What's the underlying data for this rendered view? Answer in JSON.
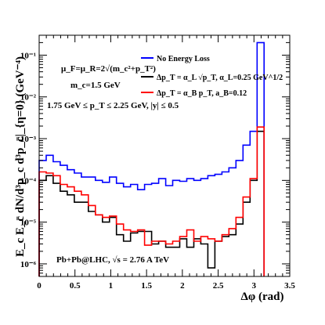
{
  "chart_data": {
    "type": "line",
    "xlabel": "Δφ (rad)",
    "ylabel": "E_c E_c̄ dN/d³p_c d³p_c̄|_{η=0} (GeV⁻⁴)",
    "xlim": [
      0,
      3.5
    ],
    "ylim": [
      5e-07,
      0.3
    ],
    "y_scale": "log",
    "x_ticks": [
      "0",
      "0.5",
      "1",
      "1.5",
      "2",
      "2.5",
      "3",
      "3.5"
    ],
    "y_ticks": [
      "10⁻⁶",
      "10⁻⁵",
      "10⁻⁴",
      "10⁻³",
      "10⁻²",
      "10⁻¹"
    ],
    "grid": false,
    "legend_position": "top-right",
    "annotations": {
      "scale": "μ_F=μ_R=2√(m_c²+p_T²)",
      "mass": "m_c=1.5 GeV",
      "cuts": "1.75 GeV ≤ p_T ≤ 2.25 GeV, |y| ≤ 0.5",
      "system": "Pb+Pb@LHC, √s = 2.76 A TeV"
    },
    "bin_edges": [
      0,
      0.0982,
      0.1963,
      0.2945,
      0.3927,
      0.4909,
      0.589,
      0.6872,
      0.7854,
      0.8836,
      0.9817,
      1.0799,
      1.1781,
      1.2763,
      1.3744,
      1.4726,
      1.5708,
      1.669,
      1.7671,
      1.8653,
      1.9635,
      2.0617,
      2.1598,
      2.258,
      2.3562,
      2.4544,
      2.5525,
      2.6507,
      2.7489,
      2.8471,
      2.9452,
      3.0434,
      3.1416
    ],
    "series": [
      {
        "name": "No Energy Loss",
        "color": "#0000ff",
        "values": [
          0.0003,
          0.0004,
          0.00028,
          0.00023,
          0.00018,
          0.00015,
          0.00012,
          0.00012,
          0.0001,
          9e-05,
          0.00012,
          8.5e-05,
          7e-05,
          8e-05,
          6e-05,
          8e-05,
          8.5e-05,
          0.00011,
          7.5e-05,
          0.0001,
          9.5e-05,
          0.00011,
          0.0001,
          0.00011,
          0.00013,
          0.00014,
          0.00016,
          0.0002,
          0.0003,
          0.0007,
          0.0015,
          0.2
        ]
      },
      {
        "name": "Δp_T = α_L √p_T, α_L=0.25 GeV^1/2",
        "color": "#000000",
        "values": [
          0.0001,
          0.00013,
          8.5e-05,
          5.5e-05,
          4.5e-05,
          3e-05,
          3e-05,
          1.8e-05,
          1.5e-05,
          1e-05,
          1.3e-05,
          5e-06,
          3.5e-06,
          5.5e-06,
          6e-06,
          6e-06,
          3e-06,
          3.5e-06,
          2.5e-06,
          2.5e-06,
          4e-06,
          2.5e-06,
          4e-06,
          3e-06,
          8e-07,
          3.5e-06,
          4.5e-06,
          5e-06,
          9e-06,
          3e-05,
          0.0001,
          0.0015
        ]
      },
      {
        "name": "Δp_T = α_B p_T, a_B=0.12",
        "color": "#ff0000",
        "values": [
          0.00016,
          0.00015,
          0.00013,
          8e-05,
          7e-05,
          5.5e-05,
          4.5e-05,
          2.5e-05,
          1.5e-05,
          1.3e-05,
          1.4e-05,
          9e-06,
          6.5e-06,
          6e-06,
          6.5e-06,
          2.8e-06,
          3.5e-06,
          3.5e-06,
          3e-06,
          3.5e-06,
          4.5e-06,
          6.5e-06,
          3.5e-06,
          4.5e-06,
          4e-06,
          3.5e-06,
          5e-06,
          7e-06,
          1.3e-05,
          4e-05,
          0.00011,
          0.0019
        ]
      }
    ]
  }
}
